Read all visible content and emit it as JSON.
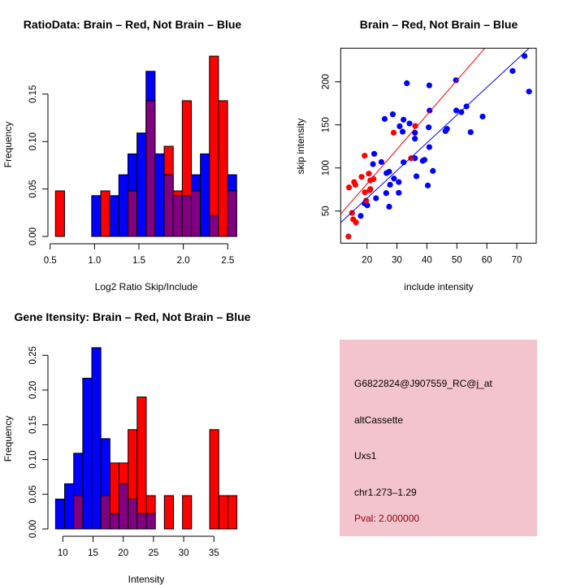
{
  "chart_data": [
    {
      "type": "bar",
      "title": "RatioData: Brain – Red, Not Brain – Blue",
      "xlabel": "Log2 Ratio Skip/Include",
      "ylabel": "Frequency",
      "xlim": [
        0.5,
        2.6
      ],
      "ylim": [
        0,
        0.19
      ],
      "xticks": [
        "0.5",
        "1.0",
        "1.5",
        "2.0",
        "2.5"
      ],
      "xtick_values": [
        0.5,
        1.0,
        1.5,
        2.0,
        2.5
      ],
      "yticks": [
        "0.00",
        "0.05",
        "0.10",
        "0.15"
      ],
      "ytick_values": [
        0,
        0.05,
        0.1,
        0.15
      ],
      "bin_start": 0.56,
      "bin_width": 0.102,
      "series": [
        {
          "name": "Not Brain",
          "color": "#0000ff",
          "values": [
            0,
            0,
            0,
            0,
            0.043,
            0,
            0.043,
            0.065,
            0.087,
            0.109,
            0.174,
            0.087,
            0.065,
            0.043,
            0.043,
            0.065,
            0.087,
            0.022,
            0,
            0.065
          ]
        },
        {
          "name": "Brain",
          "color": "#ff0000",
          "values": [
            0.048,
            0,
            0,
            0,
            0,
            0.048,
            0,
            0,
            0.048,
            0,
            0.143,
            0,
            0.095,
            0.048,
            0.143,
            0.048,
            0,
            0.19,
            0.143,
            0.048
          ]
        }
      ],
      "overlap_color": "#800080"
    },
    {
      "type": "scatter",
      "title": "Brain – Red, Not Brain – Blue",
      "xlabel": "include intensity",
      "ylabel": "skip intensity",
      "xticks": [
        "20",
        "30",
        "40",
        "50",
        "60",
        "70"
      ],
      "xtick_values": [
        20,
        30,
        40,
        50,
        60,
        70
      ],
      "yticks": [
        "50",
        "100",
        "150",
        "200"
      ],
      "ytick_values": [
        50,
        100,
        150,
        200
      ],
      "series": [
        {
          "name": "Not Brain",
          "color": "#0000ff",
          "x": [
            33.3,
            40.8,
            49.7,
            72.6,
            68.6,
            74.1,
            49.8,
            51.5,
            53.2,
            58.6,
            54.6,
            46.2,
            46.7,
            40.9,
            40.6,
            40.8,
            36.0,
            36.0,
            36.0,
            34.2,
            32.2,
            30.9,
            31.9,
            28.6,
            25.9,
            22.4,
            22.0,
            24.8,
            32.2,
            38.6,
            39.2,
            42.0,
            36.5,
            40.3,
            30.6,
            30.6,
            29.0,
            26.5,
            27.4,
            27.7,
            26.4,
            27.4,
            23.0,
            19.2,
            20.1,
            17.9
          ],
          "y": [
            198.4,
            195.9,
            201.9,
            229.9,
            212.6,
            188.7,
            166.7,
            164.8,
            171.4,
            159.7,
            141.5,
            142.8,
            145.3,
            166.7,
            147.2,
            124.2,
            140.9,
            134.0,
            111.3,
            151.6,
            156.0,
            148.4,
            142.1,
            162.3,
            156.9,
            116.4,
            104.4,
            106.9,
            106.6,
            108.2,
            109.4,
            96.5,
            90.3,
            79.6,
            83.6,
            71.1,
            87.7,
            94.0,
            95.6,
            80.5,
            70.8,
            55.0,
            64.8,
            58.8,
            56.6,
            44.3
          ],
          "fit": {
            "slope": 3.22,
            "intercept": 0.4
          }
        },
        {
          "name": "Brain",
          "color": "#ff0000",
          "x": [
            14.0,
            15.7,
            16.1,
            19.2,
            18.2,
            20.6,
            21.1,
            22.2,
            19.3,
            21.1,
            20.9,
            19.7,
            15.0,
            15.4,
            16.3,
            13.8,
            28.9,
            36.1,
            34.7
          ],
          "y": [
            77.4,
            83.6,
            80.5,
            114.2,
            89.6,
            93.4,
            85.5,
            87.1,
            71.7,
            75.5,
            74.1,
            62.0,
            47.8,
            40.3,
            36.8,
            20.4,
            140.9,
            148.7,
            111.3
          ],
          "fit": {
            "slope": 4.0,
            "intercept": 1.6
          }
        }
      ]
    },
    {
      "type": "bar",
      "title": "Gene Itensity: Brain – Red, Not Brain – Blue",
      "xlabel": "Intensity",
      "ylabel": "Frequency",
      "xticks": [
        "10",
        "15",
        "20",
        "25",
        "30",
        "35"
      ],
      "xtick_values": [
        10,
        15,
        20,
        25,
        30,
        35
      ],
      "yticks": [
        "0.00",
        "0.05",
        "0.10",
        "0.15",
        "0.20",
        "0.25"
      ],
      "ytick_values": [
        0,
        0.05,
        0.1,
        0.15,
        0.2,
        0.25
      ],
      "bin_start": 8.8,
      "bin_width": 1.5,
      "series": [
        {
          "name": "Not Brain",
          "color": "#0000ff",
          "values": [
            0.043,
            0.065,
            0.109,
            0.217,
            0.261,
            0.13,
            0.022,
            0.065,
            0.043,
            0.022,
            0.022,
            0,
            0,
            0,
            0,
            0,
            0,
            0,
            0,
            0
          ]
        },
        {
          "name": "Brain",
          "color": "#ff0000",
          "values": [
            0,
            0,
            0.048,
            0,
            0,
            0.048,
            0.095,
            0.095,
            0.143,
            0.19,
            0.048,
            0,
            0.048,
            0,
            0.048,
            0,
            0,
            0.143,
            0.048,
            0.048
          ]
        }
      ],
      "overlap_color": "#800080"
    }
  ],
  "info_panel": {
    "background": "#f4c4ce",
    "probe_id": "G6822824@J907559_RC@j_at",
    "event_type": "altCassette",
    "gene": "Uxs1",
    "location": "chr1.273–1.29",
    "pval": "Pval: 2.000000",
    "pval_color": "#8b0000"
  }
}
